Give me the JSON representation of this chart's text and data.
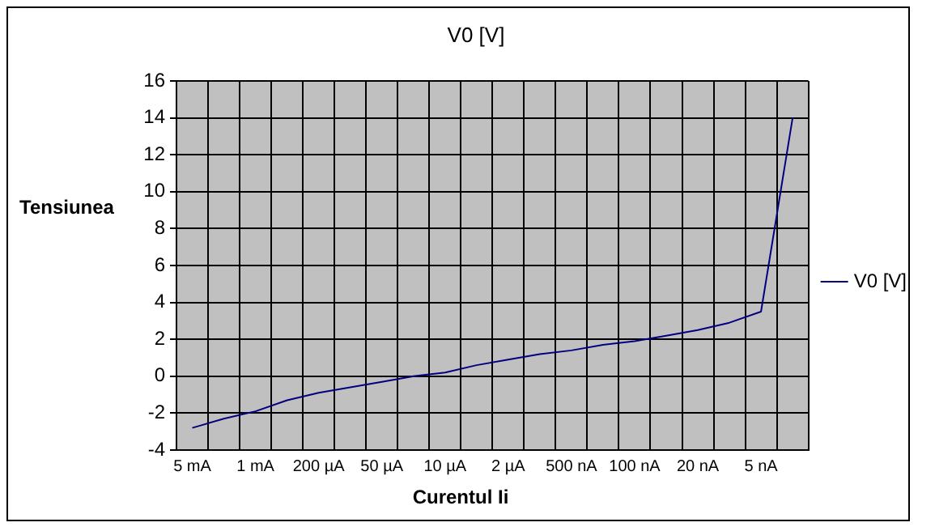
{
  "chart_data": {
    "type": "line",
    "title": "V0 [V]",
    "xlabel": "Curentul Ii",
    "ylabel": "Tensiunea",
    "categories": [
      "5 mA",
      null,
      "1 mA",
      null,
      "200 µA",
      null,
      "50 µA",
      null,
      "10 µA",
      null,
      "2 µA",
      null,
      "500 nA",
      null,
      "100 nA",
      null,
      "20 nA",
      null,
      "5 nA",
      null
    ],
    "series": [
      {
        "name": "V0 [V]",
        "color": "#000080",
        "values": [
          -2.8,
          -2.3,
          -1.9,
          -1.3,
          -0.9,
          -0.6,
          -0.3,
          0.0,
          0.2,
          0.6,
          0.9,
          1.2,
          1.4,
          1.7,
          1.9,
          2.2,
          2.5,
          2.9,
          3.5,
          14.0
        ]
      }
    ],
    "ylim": [
      -4,
      16
    ],
    "yticks": [
      -4,
      -2,
      0,
      2,
      4,
      6,
      8,
      10,
      12,
      14,
      16
    ],
    "grid": true,
    "legend": "right",
    "marker": "none",
    "line_style": "solid"
  }
}
